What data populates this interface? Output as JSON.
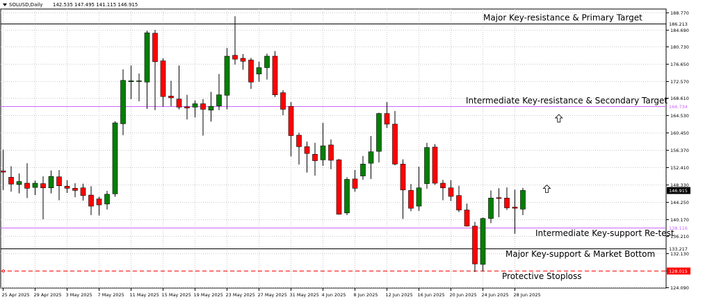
{
  "header": {
    "symbol_line": "SOLUSD,Daily",
    "ohlc_line": "142.535 147.495 141.115 146.915"
  },
  "chart_data": {
    "type": "candlestick",
    "symbol": "SOLUSD",
    "timeframe": "Daily",
    "ylim": [
      124.09,
      188.78
    ],
    "y_ticks": [
      "188.770",
      "184.690",
      "180.730",
      "176.650",
      "172.570",
      "168.610",
      "164.530",
      "160.450",
      "156.370",
      "152.410",
      "148.330",
      "144.250",
      "140.170",
      "136.210",
      "132.130",
      "128.050",
      "124.090"
    ],
    "x_ticks": [
      "25 Apr 2025",
      "29 Apr 2025",
      "3 May 2025",
      "7 May 2025",
      "11 May 2025",
      "15 May 2025",
      "19 May 2025",
      "23 May 2025",
      "27 May 2025",
      "31 May 2025",
      "4 Jun 2025",
      "8 Jun 2025",
      "12 Jun 2025",
      "16 Jun 2025",
      "20 Jun 2025",
      "24 Jun 2025",
      "28 Jun 2025"
    ],
    "start_date": "25 Apr 2025",
    "candles": [
      {
        "o": 151.5,
        "h": 156.5,
        "l": 147.0,
        "c": 151.2
      },
      {
        "o": 150.0,
        "h": 152.6,
        "l": 146.6,
        "c": 148.4
      },
      {
        "o": 148.3,
        "h": 150.9,
        "l": 146.2,
        "c": 149.0
      },
      {
        "o": 148.6,
        "h": 153.3,
        "l": 145.1,
        "c": 147.4
      },
      {
        "o": 147.6,
        "h": 149.2,
        "l": 145.8,
        "c": 148.6
      },
      {
        "o": 148.5,
        "h": 150.2,
        "l": 140.1,
        "c": 147.5
      },
      {
        "o": 147.5,
        "h": 151.6,
        "l": 146.2,
        "c": 150.2
      },
      {
        "o": 150.1,
        "h": 151.7,
        "l": 144.6,
        "c": 148.0
      },
      {
        "o": 147.9,
        "h": 149.3,
        "l": 146.3,
        "c": 147.4
      },
      {
        "o": 147.4,
        "h": 148.6,
        "l": 145.3,
        "c": 146.9
      },
      {
        "o": 147.5,
        "h": 148.5,
        "l": 144.5,
        "c": 145.7
      },
      {
        "o": 145.8,
        "h": 147.9,
        "l": 141.1,
        "c": 143.2
      },
      {
        "o": 144.9,
        "h": 145.4,
        "l": 141.0,
        "c": 143.5
      },
      {
        "o": 143.7,
        "h": 146.8,
        "l": 142.4,
        "c": 146.0
      },
      {
        "o": 146.1,
        "h": 163.2,
        "l": 145.4,
        "c": 162.8
      },
      {
        "o": 162.6,
        "h": 175.4,
        "l": 159.9,
        "c": 172.8
      },
      {
        "o": 172.5,
        "h": 176.3,
        "l": 168.4,
        "c": 172.7
      },
      {
        "o": 172.6,
        "h": 174.4,
        "l": 167.9,
        "c": 172.7
      },
      {
        "o": 172.4,
        "h": 184.5,
        "l": 166.1,
        "c": 184.0
      },
      {
        "o": 183.9,
        "h": 184.7,
        "l": 165.8,
        "c": 177.2
      },
      {
        "o": 177.4,
        "h": 178.0,
        "l": 166.6,
        "c": 169.0
      },
      {
        "o": 169.1,
        "h": 172.7,
        "l": 166.7,
        "c": 168.7
      },
      {
        "o": 168.4,
        "h": 176.3,
        "l": 166.0,
        "c": 166.5
      },
      {
        "o": 166.6,
        "h": 169.4,
        "l": 163.6,
        "c": 166.3
      },
      {
        "o": 166.5,
        "h": 168.1,
        "l": 164.1,
        "c": 167.3
      },
      {
        "o": 167.3,
        "h": 168.4,
        "l": 159.8,
        "c": 166.0
      },
      {
        "o": 165.8,
        "h": 170.1,
        "l": 163.1,
        "c": 166.7
      },
      {
        "o": 166.8,
        "h": 174.3,
        "l": 165.8,
        "c": 169.4
      },
      {
        "o": 169.3,
        "h": 180.4,
        "l": 166.0,
        "c": 178.5
      },
      {
        "o": 178.7,
        "h": 187.9,
        "l": 176.5,
        "c": 177.8
      },
      {
        "o": 178.0,
        "h": 179.0,
        "l": 175.3,
        "c": 177.3
      },
      {
        "o": 177.6,
        "h": 178.1,
        "l": 170.8,
        "c": 172.4
      },
      {
        "o": 174.3,
        "h": 177.2,
        "l": 172.5,
        "c": 175.8
      },
      {
        "o": 175.8,
        "h": 179.1,
        "l": 173.0,
        "c": 178.5
      },
      {
        "o": 178.5,
        "h": 179.7,
        "l": 168.9,
        "c": 169.4
      },
      {
        "o": 169.9,
        "h": 170.5,
        "l": 164.6,
        "c": 166.0
      },
      {
        "o": 166.7,
        "h": 167.7,
        "l": 154.9,
        "c": 159.8
      },
      {
        "o": 159.9,
        "h": 160.5,
        "l": 153.0,
        "c": 157.2
      },
      {
        "o": 157.2,
        "h": 158.4,
        "l": 151.1,
        "c": 155.6
      },
      {
        "o": 155.4,
        "h": 158.1,
        "l": 150.4,
        "c": 153.9
      },
      {
        "o": 154.1,
        "h": 162.8,
        "l": 152.7,
        "c": 157.4
      },
      {
        "o": 157.6,
        "h": 158.9,
        "l": 151.9,
        "c": 154.0
      },
      {
        "o": 154.1,
        "h": 154.3,
        "l": 141.2,
        "c": 141.3
      },
      {
        "o": 141.6,
        "h": 150.0,
        "l": 141.1,
        "c": 149.5
      },
      {
        "o": 149.6,
        "h": 151.7,
        "l": 146.6,
        "c": 147.4
      },
      {
        "o": 150.3,
        "h": 155.0,
        "l": 149.4,
        "c": 153.1
      },
      {
        "o": 153.3,
        "h": 159.7,
        "l": 149.6,
        "c": 156.0
      },
      {
        "o": 156.1,
        "h": 165.2,
        "l": 153.5,
        "c": 165.0
      },
      {
        "o": 165.0,
        "h": 167.7,
        "l": 161.6,
        "c": 162.5
      },
      {
        "o": 162.5,
        "h": 165.6,
        "l": 152.8,
        "c": 153.1
      },
      {
        "o": 153.1,
        "h": 154.2,
        "l": 140.2,
        "c": 147.0
      },
      {
        "o": 146.9,
        "h": 148.4,
        "l": 142.0,
        "c": 142.7
      },
      {
        "o": 143.2,
        "h": 152.5,
        "l": 142.1,
        "c": 147.5
      },
      {
        "o": 148.5,
        "h": 158.1,
        "l": 147.3,
        "c": 157.0
      },
      {
        "o": 157.1,
        "h": 157.8,
        "l": 148.2,
        "c": 148.6
      },
      {
        "o": 148.6,
        "h": 149.4,
        "l": 144.6,
        "c": 147.5
      },
      {
        "o": 147.5,
        "h": 149.3,
        "l": 144.4,
        "c": 145.5
      },
      {
        "o": 145.7,
        "h": 148.0,
        "l": 141.8,
        "c": 142.3
      },
      {
        "o": 142.3,
        "h": 143.8,
        "l": 138.4,
        "c": 138.5
      },
      {
        "o": 138.5,
        "h": 139.5,
        "l": 127.7,
        "c": 129.6
      },
      {
        "o": 129.5,
        "h": 140.5,
        "l": 127.9,
        "c": 140.3
      },
      {
        "o": 140.3,
        "h": 146.9,
        "l": 139.2,
        "c": 145.1
      },
      {
        "o": 145.2,
        "h": 147.4,
        "l": 140.6,
        "c": 145.0
      },
      {
        "o": 145.1,
        "h": 147.6,
        "l": 142.3,
        "c": 142.8
      },
      {
        "o": 143.0,
        "h": 147.1,
        "l": 136.7,
        "c": 142.7
      },
      {
        "o": 142.5,
        "h": 147.5,
        "l": 141.1,
        "c": 146.9
      }
    ],
    "levels": [
      {
        "name": "Major Key-resistance & Primary Target",
        "value": 186.213,
        "label": "186.213",
        "color": "#000000",
        "style": "solid",
        "text_side": "top"
      },
      {
        "name": "Intermediate Key-resistance & Secondary Target",
        "value": 166.734,
        "label": "166.734",
        "color": "#cc66ff",
        "style": "solid",
        "text_side": "top"
      },
      {
        "name": "Intermediate Key-support Re-test",
        "value": 138.116,
        "label": "138.116",
        "color": "#cc66ff",
        "style": "solid",
        "text_side": "bottom"
      },
      {
        "name": "Major Key-support & Market Bottom",
        "value": 133.217,
        "label": "133.217",
        "color": "#000000",
        "style": "solid",
        "text_side": "bottom"
      },
      {
        "name": "Protective Stoploss",
        "value": 128.015,
        "label": "128.015",
        "color": "#ff0000",
        "style": "dashed",
        "text_side": "bottom"
      }
    ],
    "current_price": {
      "value": 146.915,
      "label": "146.915"
    },
    "colors": {
      "bull": "#008000",
      "bear": "#ff0000",
      "grid": "#c8c8c8",
      "axis": "#000000"
    },
    "arrows": [
      {
        "candle": 68.5,
        "price": 163.8
      },
      {
        "candle": 67.0,
        "price": 147.2
      }
    ],
    "grid": true
  }
}
